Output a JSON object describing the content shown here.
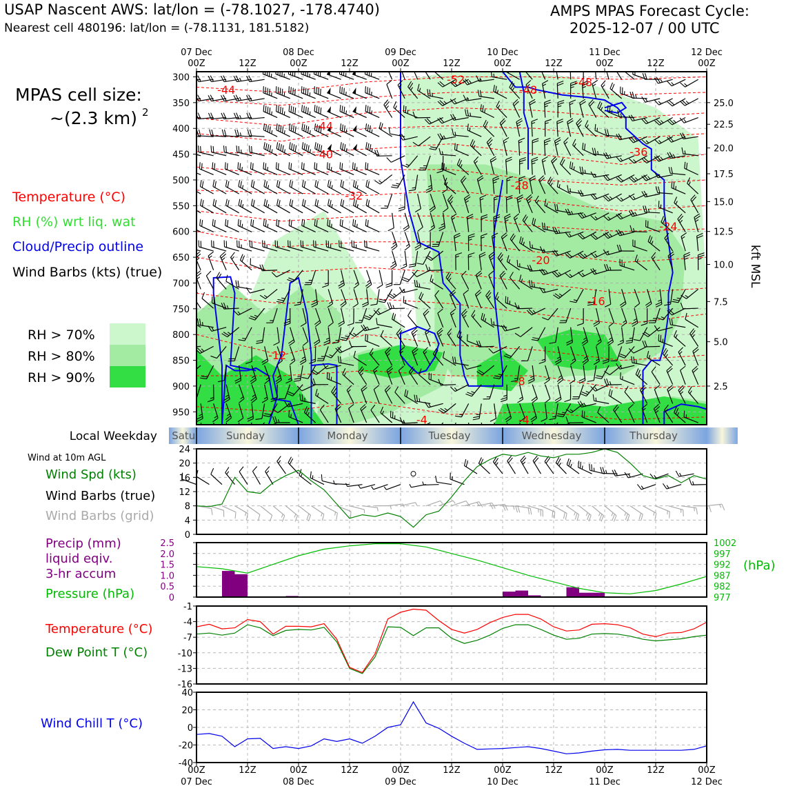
{
  "header": {
    "title_left": "USAP Nascent AWS: lat/lon = (-78.1027, -178.4740)",
    "subtitle_left": "Nearest cell 480196: lat/lon = (-78.1131, 181.5182)",
    "title_right_1": "AMPS MPAS Forecast Cycle:",
    "title_right_2": "2025-12-07 / 00 UTC"
  },
  "cell_size": {
    "line1": "MPAS cell size:",
    "line2": "~(2.3 km)",
    "exp": "2"
  },
  "colors": {
    "temperature": "#ff0000",
    "rh_label": "#33dd33",
    "rh70": "#ccf7cc",
    "rh80": "#a3eba3",
    "rh90": "#33dd44",
    "cloud": "#0000ee",
    "precip": "#800080",
    "pressure": "#00bb00",
    "dewpoint": "#008000",
    "windchill": "#0000ee",
    "grid_barb": "#aaaaaa",
    "weekday_blue": "#7ba4e0",
    "weekday_cream": "#f8f6dc"
  },
  "time_axis": {
    "top_ticks": [
      {
        "line1": "07 Dec",
        "line2": "00Z"
      },
      {
        "line1": "",
        "line2": "12Z"
      },
      {
        "line1": "08 Dec",
        "line2": "00Z"
      },
      {
        "line1": "",
        "line2": "12Z"
      },
      {
        "line1": "09 Dec",
        "line2": "00Z"
      },
      {
        "line1": "",
        "line2": "12Z"
      },
      {
        "line1": "10 Dec",
        "line2": "00Z"
      },
      {
        "line1": "",
        "line2": "12Z"
      },
      {
        "line1": "11 Dec",
        "line2": "00Z"
      },
      {
        "line1": "",
        "line2": "12Z"
      },
      {
        "line1": "12 Dec",
        "line2": "00Z"
      }
    ],
    "hours": [
      0,
      12,
      24,
      36,
      48,
      60,
      72,
      84,
      96,
      108,
      120
    ]
  },
  "chart_data": [
    {
      "type": "heatmap",
      "name": "cross-section",
      "y_pressure_ticks": [
        300,
        350,
        400,
        450,
        500,
        550,
        600,
        650,
        700,
        750,
        800,
        850,
        900,
        950
      ],
      "y_kft_ticks": [
        "25.0",
        "22.5",
        "20.0",
        "17.5",
        "15.0",
        "12.5",
        "10.0",
        "7.5",
        "5.0",
        "2.5"
      ],
      "y_kft_pressure": [
        350,
        392,
        438,
        488,
        542,
        600,
        664,
        736,
        814,
        900
      ],
      "ylabel_right": "kft MSL",
      "ylim": [
        975,
        290
      ],
      "temp_contour_labels": [
        {
          "text": "-44",
          "t": 7,
          "p": 325
        },
        {
          "text": "-44",
          "t": 30,
          "p": 395
        },
        {
          "text": "-40",
          "t": 30,
          "p": 450
        },
        {
          "text": "-32",
          "t": 37,
          "p": 530
        },
        {
          "text": "-52",
          "t": 61,
          "p": 305
        },
        {
          "text": "-48",
          "t": 78,
          "p": 325
        },
        {
          "text": "-48",
          "t": 91,
          "p": 310
        },
        {
          "text": "-36",
          "t": 104,
          "p": 445
        },
        {
          "text": "-28",
          "t": 76,
          "p": 510
        },
        {
          "text": "-24",
          "t": 111,
          "p": 590
        },
        {
          "text": "-20",
          "t": 81,
          "p": 655
        },
        {
          "text": "-16",
          "t": 94,
          "p": 735
        },
        {
          "text": "-12",
          "t": 19,
          "p": 840
        },
        {
          "text": "-8",
          "t": 76,
          "p": 890
        },
        {
          "text": "-4",
          "t": 53,
          "p": 965
        },
        {
          "text": "-4",
          "t": 77,
          "p": 965
        }
      ],
      "legend": [
        {
          "label": "Temperature (°C)",
          "color": "#ff0000"
        },
        {
          "label": "RH (%) wrt liq. wat",
          "color": "#33dd33"
        },
        {
          "label": "Cloud/Precip outline",
          "color": "#0000ee"
        },
        {
          "label": "Wind Barbs (kts) (true)",
          "color": "#000000"
        }
      ],
      "rh_legend": [
        "RH > 70%",
        "RH > 80%",
        "RH > 90%"
      ]
    },
    {
      "type": "line",
      "name": "weekday",
      "label": "Local Weekday",
      "days": [
        "Saturday",
        "Sunday",
        "Monday",
        "Tuesday",
        "Wednesday",
        "Thursday"
      ]
    },
    {
      "type": "line",
      "name": "wind-10m",
      "panel_title": "Wind at 10m AGL",
      "labels": [
        "Wind Spd (kts)",
        "Wind Barbs (true)",
        "Wind Barbs (grid)"
      ],
      "ylim": [
        0,
        24
      ],
      "yticks": [
        "0",
        "4",
        "8",
        "12",
        "16",
        "20",
        "24"
      ],
      "x": [
        0,
        3,
        6,
        9,
        12,
        15,
        18,
        21,
        24,
        27,
        30,
        33,
        36,
        39,
        42,
        45,
        48,
        51,
        54,
        57,
        60,
        63,
        66,
        69,
        72,
        75,
        78,
        81,
        84,
        87,
        90,
        93,
        96,
        99,
        102,
        105,
        108,
        111,
        114,
        117,
        120
      ],
      "wind_speed": [
        8,
        7.8,
        8.5,
        16,
        12,
        11.5,
        14.5,
        16.5,
        18,
        15,
        12.5,
        8.5,
        4.5,
        5.5,
        5,
        6,
        5,
        2,
        5.5,
        6.5,
        10.5,
        15,
        19,
        21,
        22.5,
        22,
        23,
        22,
        21.5,
        22.5,
        22.5,
        23,
        24,
        23,
        20,
        16.5,
        15.5,
        16.5,
        14.5,
        16.5,
        15.5
      ],
      "calm_marker_hour": 51
    },
    {
      "type": "bar",
      "name": "precip-pressure",
      "labels": [
        "Precip (mm)",
        "liquid eqiv.",
        "3-hr accum",
        "Pressure (hPa)"
      ],
      "precip_ylim": [
        0,
        2.5
      ],
      "precip_yticks": [
        "0",
        "0.5",
        "1.0",
        "1.5",
        "2.0",
        "2.5"
      ],
      "pressure_ylim": [
        977,
        1002
      ],
      "pressure_yticks": [
        "977",
        "982",
        "987",
        "992",
        "997",
        "1002"
      ],
      "pressure_unit": "(hPa)",
      "precip_bars": [
        {
          "t": 7.5,
          "v": 1.2
        },
        {
          "t": 10.5,
          "v": 1.05
        },
        {
          "t": 22.5,
          "v": 0.05
        },
        {
          "t": 73.5,
          "v": 0.25
        },
        {
          "t": 76.5,
          "v": 0.3
        },
        {
          "t": 79.5,
          "v": 0.08
        },
        {
          "t": 88.5,
          "v": 0.45
        },
        {
          "t": 91.5,
          "v": 0.2
        },
        {
          "t": 94.5,
          "v": 0.2
        }
      ],
      "pressure": {
        "x": [
          0,
          6,
          12,
          18,
          24,
          30,
          36,
          42,
          48,
          54,
          60,
          66,
          72,
          78,
          84,
          90,
          96,
          102,
          108,
          114,
          120
        ],
        "values": [
          991,
          990,
          988,
          992,
          996,
          999,
          1000.5,
          1001.5,
          1001.5,
          1000,
          997,
          994,
          990.5,
          987,
          984,
          981,
          979,
          978.5,
          980,
          983,
          986.5
        ]
      }
    },
    {
      "type": "line",
      "name": "temperature-dewpoint",
      "labels": [
        "Temperature (°C)",
        "Dew Point T (°C)"
      ],
      "ylim": [
        -16,
        -1
      ],
      "yticks": [
        "-16",
        "-13",
        "-10",
        "-7",
        "-4",
        "-1"
      ],
      "x": [
        0,
        3,
        6,
        9,
        12,
        15,
        18,
        21,
        24,
        27,
        30,
        33,
        36,
        39,
        42,
        45,
        48,
        51,
        54,
        57,
        60,
        63,
        66,
        69,
        72,
        75,
        78,
        81,
        84,
        87,
        90,
        93,
        96,
        99,
        102,
        105,
        108,
        111,
        114,
        117,
        120
      ],
      "temperature": [
        -5,
        -4.5,
        -5.4,
        -5.2,
        -3.6,
        -4,
        -6.4,
        -4.9,
        -4.9,
        -5,
        -4.4,
        -7.4,
        -12.8,
        -13.8,
        -10.2,
        -3.5,
        -2.2,
        -1.6,
        -1.8,
        -3.8,
        -5.5,
        -6.2,
        -5.5,
        -4.2,
        -3.2,
        -2.6,
        -2.6,
        -3.5,
        -5,
        -5.8,
        -5.6,
        -4.5,
        -4.4,
        -4.6,
        -5.2,
        -6.4,
        -6.9,
        -6.2,
        -6.1,
        -5.4,
        -4.1
      ],
      "dewpoint": [
        -6.4,
        -6.2,
        -6.6,
        -6.2,
        -4.6,
        -5.2,
        -6.7,
        -5.7,
        -5.5,
        -5.6,
        -5.1,
        -7.9,
        -13,
        -14,
        -10.8,
        -5,
        -5.1,
        -6.7,
        -5.2,
        -5.2,
        -7.2,
        -8.2,
        -7.6,
        -6.6,
        -5.3,
        -4.6,
        -4.6,
        -5.5,
        -6.6,
        -7.4,
        -7.2,
        -6.4,
        -6.3,
        -6.4,
        -6.8,
        -7.4,
        -7.7,
        -7.5,
        -7.3,
        -6.9,
        -6.6
      ]
    },
    {
      "type": "line",
      "name": "wind-chill",
      "labels": [
        "Wind Chill T (°C)"
      ],
      "ylim": [
        -40,
        40
      ],
      "yticks": [
        "-40",
        "-20",
        "0",
        "20",
        "40"
      ],
      "x": [
        0,
        3,
        6,
        9,
        12,
        15,
        18,
        21,
        24,
        27,
        30,
        33,
        36,
        39,
        42,
        45,
        48,
        51,
        54,
        57,
        60,
        63,
        66,
        69,
        72,
        75,
        78,
        81,
        84,
        87,
        90,
        93,
        96,
        99,
        102,
        105,
        108,
        111,
        114,
        117,
        120
      ],
      "values": [
        -8,
        -7,
        -10,
        -22,
        -13,
        -12.5,
        -24,
        -22,
        -24,
        -21,
        -13,
        -16,
        -13,
        -18,
        -10,
        0,
        3,
        29,
        5,
        -1,
        -10,
        -18,
        -25,
        -24.5,
        -24,
        -23,
        -22,
        -24,
        -27,
        -30,
        -29,
        -27,
        -25.5,
        -25,
        -26,
        -26,
        -26,
        -26,
        -26,
        -25,
        -21
      ]
    }
  ],
  "bottom_axis": {
    "ticks": [
      {
        "line1": "00Z",
        "line2": "07 Dec"
      },
      {
        "line1": "12Z",
        "line2": ""
      },
      {
        "line1": "00Z",
        "line2": "08 Dec"
      },
      {
        "line1": "12Z",
        "line2": ""
      },
      {
        "line1": "00Z",
        "line2": "09 Dec"
      },
      {
        "line1": "12Z",
        "line2": ""
      },
      {
        "line1": "00Z",
        "line2": "10 Dec"
      },
      {
        "line1": "12Z",
        "line2": ""
      },
      {
        "line1": "00Z",
        "line2": "11 Dec"
      },
      {
        "line1": "12Z",
        "line2": ""
      },
      {
        "line1": "00Z",
        "line2": "12 Dec"
      }
    ]
  }
}
